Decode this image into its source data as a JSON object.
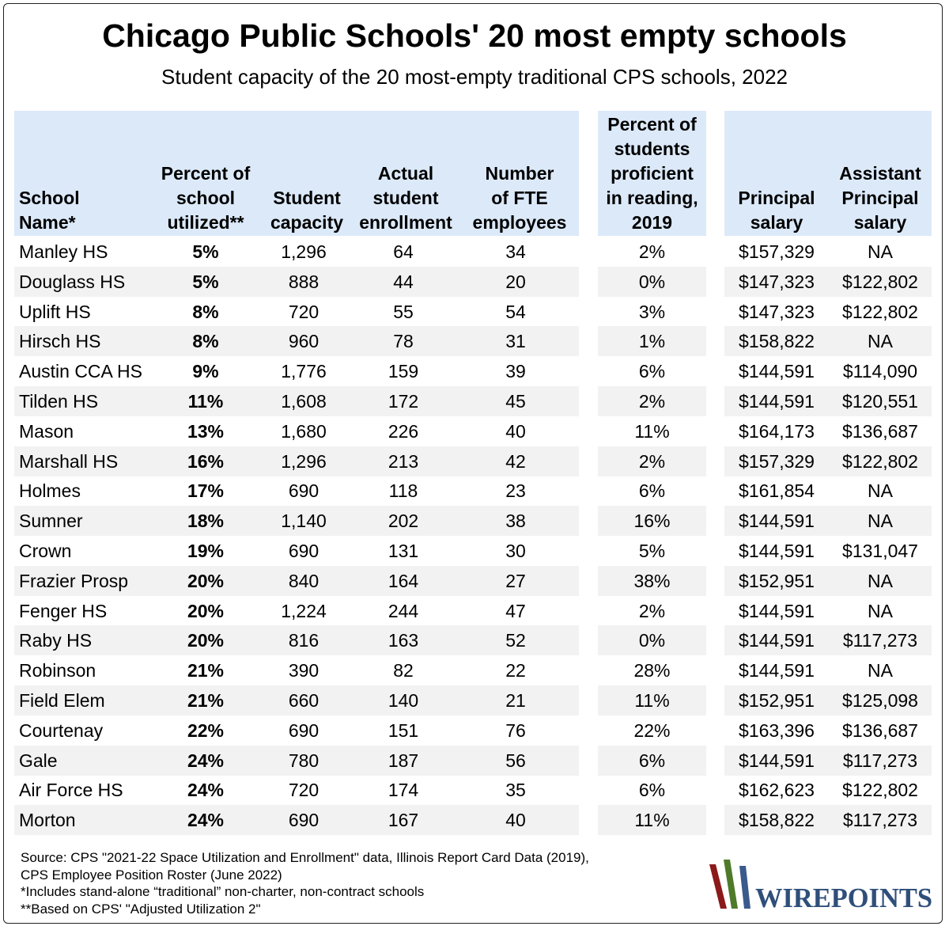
{
  "chart_data": {
    "type": "table",
    "title": "Chicago Public Schools' 20 most empty schools",
    "subtitle": "Student capacity of the 20 most-empty traditional CPS schools, 2022",
    "columns": [
      "School Name*",
      "Percent of school utilized**",
      "Student capacity",
      "Actual student enrollment",
      "Number of FTE employees",
      "Percent of students proficient in reading, 2019",
      "Principal salary",
      "Assistant Principal salary"
    ],
    "header_lines": [
      "School\nName*",
      "Percent of\nschool\nutilized**",
      "Student\ncapacity",
      "Actual\nstudent\nenrollment",
      "Number\nof FTE\nemployees",
      "Percent of\nstudents\nproficient\nin reading,\n2019",
      "Principal\nsalary",
      "Assistant\nPrincipal\nsalary"
    ],
    "rows": [
      [
        "Manley HS",
        "5%",
        "1,296",
        "64",
        "34",
        "2%",
        "$157,329",
        "NA"
      ],
      [
        "Douglass HS",
        "5%",
        "888",
        "44",
        "20",
        "0%",
        "$147,323",
        "$122,802"
      ],
      [
        "Uplift HS",
        "8%",
        "720",
        "55",
        "54",
        "3%",
        "$147,323",
        "$122,802"
      ],
      [
        "Hirsch HS",
        "8%",
        "960",
        "78",
        "31",
        "1%",
        "$158,822",
        "NA"
      ],
      [
        "Austin CCA HS",
        "9%",
        "1,776",
        "159",
        "39",
        "6%",
        "$144,591",
        "$114,090"
      ],
      [
        "Tilden HS",
        "11%",
        "1,608",
        "172",
        "45",
        "2%",
        "$144,591",
        "$120,551"
      ],
      [
        "Mason",
        "13%",
        "1,680",
        "226",
        "40",
        "11%",
        "$164,173",
        "$136,687"
      ],
      [
        "Marshall HS",
        "16%",
        "1,296",
        "213",
        "42",
        "2%",
        "$157,329",
        "$122,802"
      ],
      [
        "Holmes",
        "17%",
        "690",
        "118",
        "23",
        "6%",
        "$161,854",
        "NA"
      ],
      [
        "Sumner",
        "18%",
        "1,140",
        "202",
        "38",
        "16%",
        "$144,591",
        "NA"
      ],
      [
        "Crown",
        "19%",
        "690",
        "131",
        "30",
        "5%",
        "$144,591",
        "$131,047"
      ],
      [
        "Frazier Prosp",
        "20%",
        "840",
        "164",
        "27",
        "38%",
        "$152,951",
        "NA"
      ],
      [
        "Fenger HS",
        "20%",
        "1,224",
        "244",
        "47",
        "2%",
        "$144,591",
        "NA"
      ],
      [
        "Raby HS",
        "20%",
        "816",
        "163",
        "52",
        "0%",
        "$144,591",
        "$117,273"
      ],
      [
        "Robinson",
        "21%",
        "390",
        "82",
        "22",
        "28%",
        "$144,591",
        "NA"
      ],
      [
        "Field Elem",
        "21%",
        "660",
        "140",
        "21",
        "11%",
        "$152,951",
        "$125,098"
      ],
      [
        "Courtenay",
        "22%",
        "690",
        "151",
        "76",
        "22%",
        "$163,396",
        "$136,687"
      ],
      [
        "Gale",
        "24%",
        "780",
        "187",
        "56",
        "6%",
        "$144,591",
        "$117,273"
      ],
      [
        "Air Force HS",
        "24%",
        "720",
        "174",
        "35",
        "6%",
        "$162,623",
        "$122,802"
      ],
      [
        "Morton",
        "24%",
        "690",
        "167",
        "40",
        "11%",
        "$158,822",
        "$117,273"
      ]
    ],
    "notes": [
      "Source: CPS \"2021-22 Space Utilization and Enrollment\" data, Illinois Report Card Data (2019),",
      "CPS Employee Position Roster (June 2022)",
      "*Includes stand-alone “traditional” non-charter, non-contract schools",
      "**Based on CPS' \"Adjusted Utilization 2\""
    ],
    "logo_text": "WIREPOINTS",
    "colors": {
      "header_bg": "#dce9f9",
      "stripe_bg": "#f2f2f2",
      "logo_red": "#8b1a1a",
      "logo_green": "#4e7a2a",
      "logo_blue": "#3a5a8c",
      "logo_text": "#2f4f7a"
    }
  }
}
